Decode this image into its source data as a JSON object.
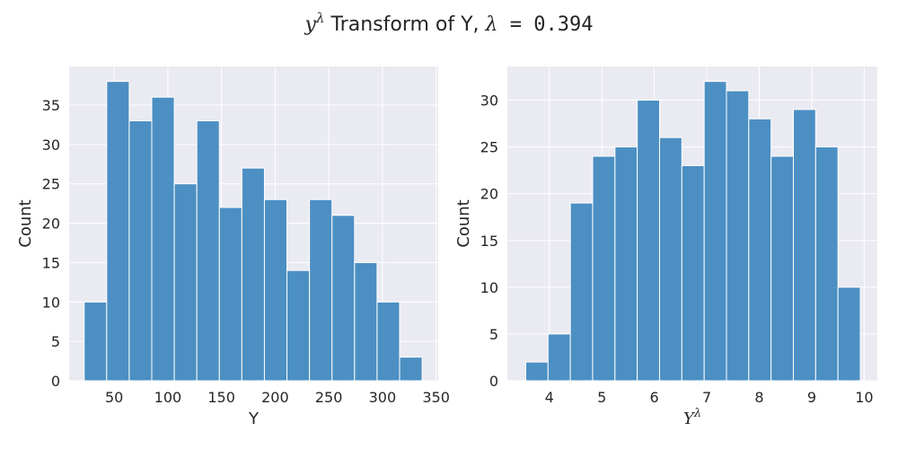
{
  "figure": {
    "title_prefix": "y",
    "title_sup": "λ",
    "title_middle": " Transform of Y, ",
    "title_lambda": "λ",
    "title_eq": " = 0.394"
  },
  "colors": {
    "background": "#eaeaf2",
    "bar_fill": "#4c8fc3",
    "bar_edge": "#ffffff",
    "grid": "#ffffff"
  },
  "chart_data": [
    {
      "type": "bar",
      "title": "",
      "xlabel": "Y",
      "ylabel": "Count",
      "xlim": [
        8,
        352
      ],
      "ylim": [
        0,
        39.9
      ],
      "xticks": [
        50,
        100,
        150,
        200,
        250,
        300,
        350
      ],
      "yticks": [
        0,
        5,
        10,
        15,
        20,
        25,
        30,
        35
      ],
      "grid": true,
      "bin_edges": [
        22,
        43,
        64,
        85,
        106,
        127,
        148,
        169,
        190,
        211,
        232,
        253,
        274,
        295,
        316,
        337
      ],
      "values": [
        10,
        38,
        33,
        36,
        25,
        33,
        22,
        27,
        23,
        14,
        23,
        21,
        15,
        10,
        3
      ]
    },
    {
      "type": "bar",
      "title": "",
      "xlabel": "Y",
      "xlabel_sup": "λ",
      "ylabel": "Count",
      "xlim": [
        3.2,
        10.25
      ],
      "ylim": [
        0,
        33.6
      ],
      "xticks": [
        4,
        5,
        6,
        7,
        8,
        9,
        10
      ],
      "yticks": [
        0,
        5,
        10,
        15,
        20,
        25,
        30
      ],
      "grid": true,
      "bin_edges": [
        3.55,
        3.975,
        4.4,
        4.825,
        5.25,
        5.675,
        6.1,
        6.525,
        6.95,
        7.375,
        7.8,
        8.225,
        8.65,
        9.075,
        9.5,
        9.925
      ],
      "values": [
        2,
        5,
        19,
        24,
        25,
        30,
        26,
        23,
        32,
        31,
        28,
        24,
        29,
        25,
        10
      ]
    }
  ]
}
